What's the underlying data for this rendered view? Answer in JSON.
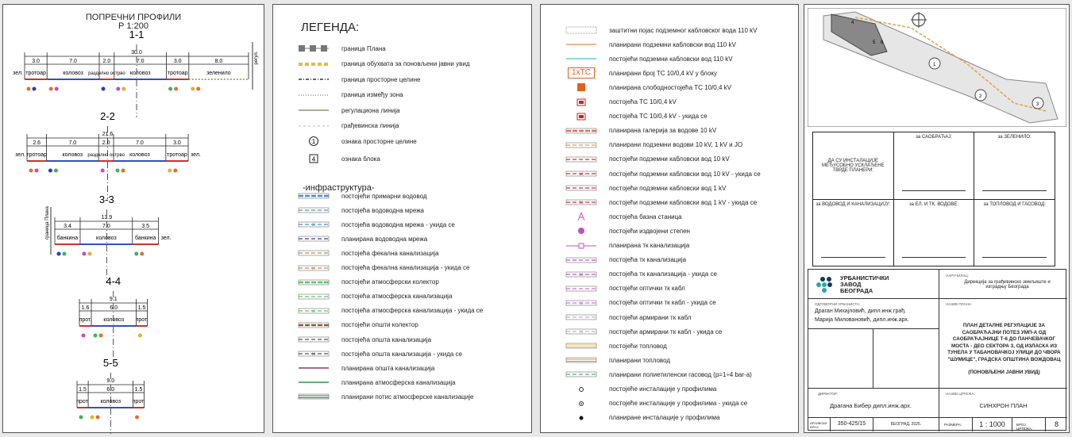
{
  "profiles_panel": {
    "title": "ПОПРЕЧНИ ПРОФИЛИ",
    "scale": "Р 1:200",
    "profiles": [
      {
        "name": "1-1",
        "total": "30.0",
        "segments": [
          "3.0",
          "7.0",
          "2.0",
          "7.0",
          "3.0",
          "8.0"
        ],
        "widths": [
          3,
          7,
          2,
          7,
          3,
          8
        ],
        "labels": [
          "тротоар",
          "коловоз",
          "разделно острво",
          "коловоз",
          "тротоар",
          "зеленило"
        ],
        "left_label": "зел.",
        "side_label": "регул."
      },
      {
        "name": "2-2",
        "total": "21.6",
        "segments": [
          "2.6",
          "7.0",
          "2.0",
          "7.0",
          "3.0"
        ],
        "widths": [
          2.6,
          7,
          2,
          7,
          3
        ],
        "labels": [
          "тротоар",
          "коловоз",
          "разделно острво",
          "коловоз",
          "тротоар"
        ],
        "left_label": "зел.",
        "right_label": "зел."
      },
      {
        "name": "3-3",
        "total": "13.9",
        "segments": [
          "3.4",
          "7.0",
          "3.5"
        ],
        "widths": [
          3.4,
          7,
          3.5
        ],
        "labels": [
          "банкина",
          "коловоз",
          "банкина"
        ],
        "right_label": "зел.",
        "side_label": "граница Плана"
      },
      {
        "name": "4-4",
        "total": "9.1",
        "segments": [
          "1.6",
          "6.0",
          "1.5"
        ],
        "widths": [
          1.6,
          6,
          1.5
        ],
        "labels": [
          "прот.",
          "коловоз",
          "прот."
        ]
      },
      {
        "name": "5-5",
        "total": "9.0",
        "segments": [
          "1.5",
          "6.0",
          "1.5"
        ],
        "widths": [
          1.5,
          6,
          1.5
        ],
        "labels": [
          "прот.",
          "коловоз",
          "прот."
        ]
      }
    ]
  },
  "legend": {
    "title": "ЛЕГЕНДА:",
    "items": [
      {
        "label": "граница Плана",
        "style": "plan-border",
        "color": "#777777"
      },
      {
        "label": "граница обухвата за поновљени јавни увид",
        "style": "dashed-thick",
        "color": "#e6b84a"
      },
      {
        "label": "граница просторне целине",
        "style": "dash-dot",
        "color": "#333333"
      },
      {
        "label": "граница између зона",
        "style": "dotted",
        "color": "#aaaaaa"
      },
      {
        "label": "регулациона линија",
        "style": "solid",
        "color": "#8a9a6a"
      },
      {
        "label": "грађевинска линија",
        "style": "dashed-thin",
        "color": "#bbbbbb"
      },
      {
        "label": "ознака просторне целине",
        "style": "circle",
        "symbol": "1"
      },
      {
        "label": "ознака блока",
        "style": "square",
        "symbol": "4"
      }
    ],
    "infra_title": "-инфраструктура-",
    "infra_items": [
      {
        "label": "постојећи примарни водовод",
        "color": "#4a8fd8",
        "style": "double-dash"
      },
      {
        "label": "постојећа водоводна мрежа",
        "color": "#4a8fd8",
        "style": "dash"
      },
      {
        "label": "постојећа водоводна мрежа - укида се",
        "color": "#4a8fd8",
        "style": "dash-x"
      },
      {
        "label": "планирана водоводна мрежа",
        "color": "#2a3f9a",
        "style": "dash"
      },
      {
        "label": "постојећа фекална канализација",
        "color": "#c8864a",
        "style": "dash"
      },
      {
        "label": "постојећа фекална канализација - укида се",
        "color": "#c8864a",
        "style": "dash-x"
      },
      {
        "label": "постојећи атмосферски колектор",
        "color": "#5cc46a",
        "style": "double-dash"
      },
      {
        "label": "постојећа атмосферска канализација",
        "color": "#5cc46a",
        "style": "dash"
      },
      {
        "label": "постојећа атмосферска канализација - укида се",
        "color": "#5cc46a",
        "style": "dash-x"
      },
      {
        "label": "постојећи општи колектор",
        "color": "#8a5a3a",
        "style": "double-dash"
      },
      {
        "label": "постојећа општа канализација",
        "color": "#555555",
        "style": "dash"
      },
      {
        "label": "постојећа општа канализација - укида се",
        "color": "#555555",
        "style": "dash-x"
      },
      {
        "label": "планирана општа канализација",
        "color": "#8a3a5a",
        "style": "solid"
      },
      {
        "label": "планирана атмосферска канализација",
        "color": "#2a9a4a",
        "style": "solid"
      },
      {
        "label": "планирани потис атмосферске канализације",
        "color": "#2a7a3a",
        "style": "double"
      }
    ]
  },
  "legend2": {
    "items": [
      {
        "label": "заштитни појас подземног кабловског вода 110 kV",
        "style": "hatched-box",
        "color": "#999999"
      },
      {
        "label": "планирани подземни кабловски вод 110 kV",
        "style": "solid",
        "color": "#e8a070"
      },
      {
        "label": "постојећи подземни кабловски вод 110 kV",
        "style": "solid",
        "color": "#66cccc"
      },
      {
        "label": "планирани број ТС 10/0,4 kV у блоку",
        "style": "text-box",
        "symbol": "1xТС",
        "color": "#e06020"
      },
      {
        "label": "планирана слободностојећа ТС 10/0,4 kV",
        "style": "filled-box",
        "color": "#e06020"
      },
      {
        "label": "постојећа ТС 10/0,4 kV",
        "style": "red-box",
        "color": "#d02020"
      },
      {
        "label": "постојећа ТС 10/0,4 kV - укида се",
        "style": "red-box",
        "color": "#d02020"
      },
      {
        "label": "планирана галерија за водове 10 kV",
        "style": "double-dash",
        "color": "#e07060"
      },
      {
        "label": "планирани подземни водови 10 kV, 1 kV и ЈО",
        "style": "dash",
        "color": "#e0a040"
      },
      {
        "label": "постојећи подземни кабловски вод 10 kV",
        "style": "dash",
        "color": "#d03030"
      },
      {
        "label": "постојећи подземни кабловски вод 10 kV - укида се",
        "style": "dash-x",
        "color": "#d03030"
      },
      {
        "label": "постојећи подземни кабловски вод 1 kV",
        "style": "dash",
        "color": "#d03030"
      },
      {
        "label": "постојећи подземни кабловски вод 1 kV - укида се",
        "style": "dash-x",
        "color": "#d03030"
      },
      {
        "label": "постојећа базна станица",
        "style": "tower",
        "color": "#c050c0"
      },
      {
        "label": "постојећи издвојени степен",
        "style": "circle-fill",
        "color": "#c050c0"
      },
      {
        "label": "планирана тк канализација",
        "style": "solid-sq",
        "color": "#c050c0"
      },
      {
        "label": "постојећа тк канализација",
        "style": "dash",
        "color": "#c050c0"
      },
      {
        "label": "постојећа тк канализација - укида се",
        "style": "dash-x",
        "color": "#c050c0"
      },
      {
        "label": "постојећи оптички тк кабл",
        "style": "dash",
        "color": "#d070d0"
      },
      {
        "label": "постојећи оптички тк кабл - укида се",
        "style": "dash-x",
        "color": "#d070d0"
      },
      {
        "label": "постојећи армирани тк кабл",
        "style": "dash",
        "color": "#d0a0e0"
      },
      {
        "label": "постојећи армирани тк кабл - укида се",
        "style": "dash-x",
        "color": "#d0a0e0"
      },
      {
        "label": "постојећи топловод",
        "style": "double",
        "color": "#e0c060"
      },
      {
        "label": "планирани топловод",
        "style": "double",
        "color": "#c8a040"
      },
      {
        "label": "планирани полиетиленски гасовод  (p=1÷4 bar-a)",
        "style": "dash",
        "color": "#5aaa6a"
      },
      {
        "label": "постојеће инсталације у профилима",
        "style": "ring",
        "color": "#333333"
      },
      {
        "label": "постојеће инсталације у профилима - укида се",
        "style": "ring-x",
        "color": "#333333"
      },
      {
        "label": "планиране инсталације у профилима",
        "style": "dot",
        "color": "#111111"
      }
    ]
  },
  "signatures": {
    "intro": "ДА СУ ИНСТАЛАЦИЈЕ МЕЂУСОБНО УСКЛАЂЕНЕ ТВРДЕ ПЛАНЕРИ:",
    "cells": [
      "за САОБРАЋАЈ:",
      "за ЗЕЛЕНИЛО:",
      "за ВОДОВОД И КАНАЛИЗАЦИЈУ:",
      "за ЕЛ. И ТК. ВОДОВЕ:",
      "за ТОПЛОВОД И ГАСОВОД:"
    ]
  },
  "title_block": {
    "logo": "УРБАНИСТИЧКИ ЗАВОД БЕОГРАДА",
    "client_label": "НАРУЧИЛАЦ:",
    "client": "Дирекција за грађевинско земљиште и изградњу Београда",
    "urbanists_label": "ОДГОВОРНИ УРБАНИСТА:",
    "urbanists": [
      "Драган Михајловић, дипл.инж.грађ.",
      "Марија Миловановић, дипл.инж.арх."
    ],
    "plan_label": "НАЗИВ ПЛАНА:",
    "plan_name": "ПЛАН ДЕТАЛНЕ РЕГУЛАЦИЈЕ ЗА САОБРАЋАЈНИ ПОТЕЗ УМП-А ОД САОБРАЋАЈНИЦЕ Т-6 ДО ПАНЧЕВАЧКОГ МОСТА - ДЕО СЕКТОРА 3, ОД ИЗЛАСКА ИЗ ТУНЕЛА У ТАБАНОВАЧКОЈ УЛИЦИ ДО ЧВОРА \"ШУМИЦЕ\", ГРАДСКА ОПШТИНА ВОЖДОВАЦ",
    "plan_note": "(ПОНОВЉЕНИ ЈАВНИ УВИД)",
    "director_label": "ДИРЕКТОР:",
    "director": "Драгана Бибер дипл.инж.арх.",
    "drawing_label": "НАЗИВ ЦРТЕЖА:",
    "drawing": "СИНХРОН ПЛАН",
    "archive_label": "АРХИВСКИ БРОЈ:",
    "archive": "350-425/15",
    "place_date": "БЕОГРАД, 2025.",
    "scale_label": "РАЗМЕРА:",
    "scale": "1 : 1000",
    "drawing_no_label": "БРОЈ ЦРТЕЖА:",
    "drawing_no": "8"
  },
  "map": {
    "block_labels": [
      "4",
      "5",
      "6",
      "1",
      "2",
      "3"
    ]
  }
}
